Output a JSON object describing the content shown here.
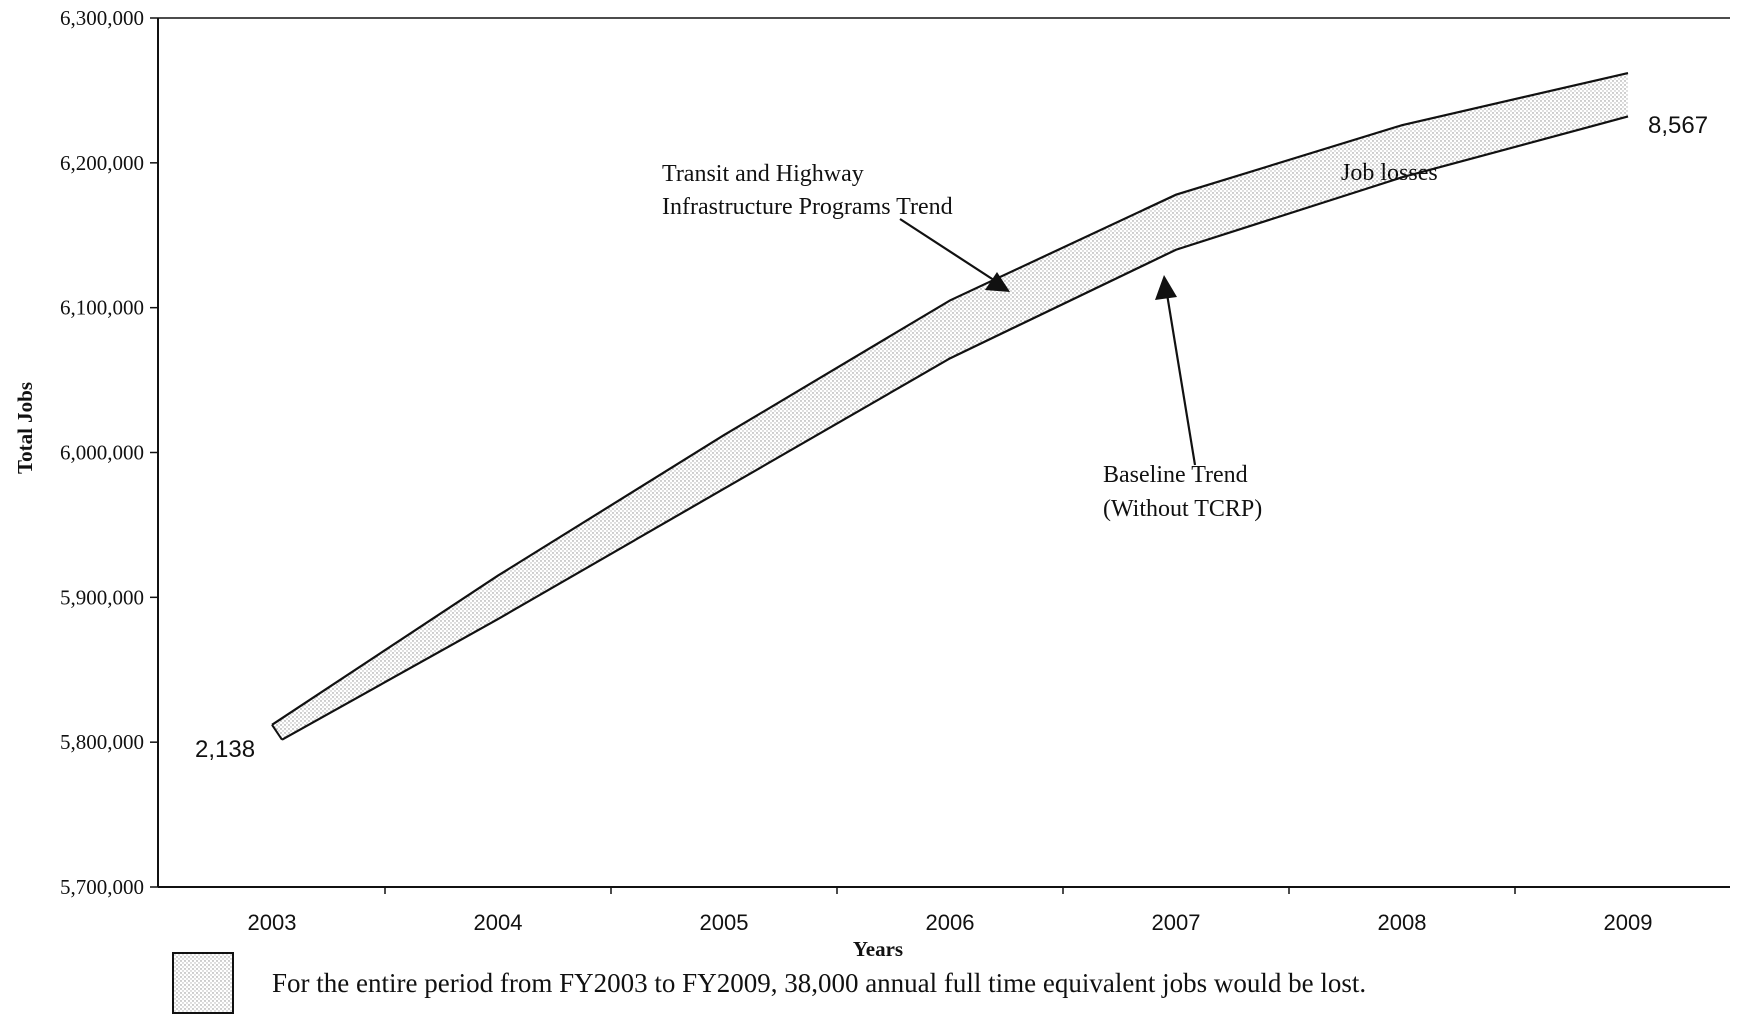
{
  "chart_data": {
    "type": "area",
    "title": "",
    "xlabel": "Years",
    "ylabel": "Total Jobs",
    "categories": [
      "2003",
      "2004",
      "2005",
      "2006",
      "2007",
      "2008",
      "2009"
    ],
    "yticks": [
      "5,700,000",
      "5,800,000",
      "5,900,000",
      "6,000,000",
      "6,100,000",
      "6,200,000",
      "6,300,000"
    ],
    "ylim": [
      5700000,
      6300000
    ],
    "grid": false,
    "series": [
      {
        "name": "Transit and Highway Infrastructure Programs Trend",
        "values": [
          5812000,
          5915000,
          6012000,
          6105000,
          6178000,
          6226000,
          6262000
        ]
      },
      {
        "name": "Baseline Trend (Without TCRP)",
        "values": [
          5810000,
          5885000,
          5975000,
          6065000,
          6140000,
          6190000,
          6232000
        ]
      }
    ],
    "annotations": {
      "program_trend": [
        "Transit and Highway",
        "Infrastructure Programs Trend"
      ],
      "baseline_trend": [
        "Baseline Trend",
        "(Without TCRP)"
      ],
      "job_losses": "Job losses",
      "start_value": "2,138",
      "end_value": "8,567"
    },
    "legend": {
      "placement": "bottom",
      "text": "For the entire period from FY2003 to FY2009, 38,000 annual full time equivalent jobs would be lost."
    }
  }
}
